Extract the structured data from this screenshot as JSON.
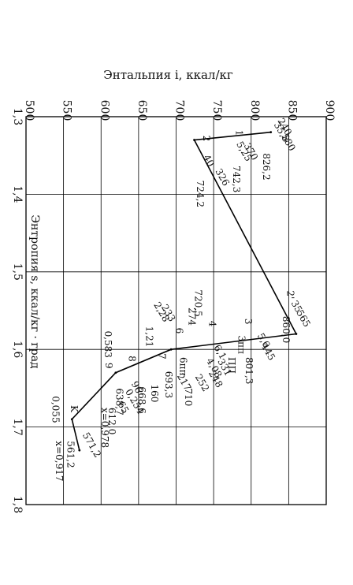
{
  "chart_data": {
    "type": "line",
    "xlabel": "Энтальпия i, ккал/кг",
    "ylabel": "Энтропия s, ккал/кг · град",
    "xlim": [
      500,
      900
    ],
    "ylim": [
      1.3,
      1.8
    ],
    "x_ticks": [
      "500",
      "550",
      "600",
      "650",
      "700",
      "750",
      "800",
      "850",
      "900"
    ],
    "y_ticks": [
      "1,3",
      "1,4",
      "1,5",
      "1,6",
      "1,7",
      "1,8"
    ],
    "grid": true,
    "orientation": "rotated-90-clockwise",
    "series": [
      {
        "points": [
          {
            "x": 826.2,
            "y": 1.32
          },
          {
            "x": 724.2,
            "y": 1.33
          },
          {
            "x": 860.0,
            "y": 1.58
          },
          {
            "x": 693.3,
            "y": 1.6
          },
          {
            "x": 619.5,
            "y": 1.63
          },
          {
            "x": 561.2,
            "y": 1.69
          },
          {
            "x": 571.2,
            "y": 1.73
          }
        ]
      }
    ],
    "annotations": [
      {
        "text": "240",
        "x": 835,
        "y": 1.305,
        "rot": 60
      },
      {
        "text": "35,8",
        "x": 830,
        "y": 1.31,
        "rot": 60
      },
      {
        "text": "580",
        "x": 840,
        "y": 1.325,
        "rot": 60
      },
      {
        "text": "826,2",
        "x": 816,
        "y": 1.347,
        "rot": 90
      },
      {
        "text": "1",
        "x": 780,
        "y": 1.317,
        "rot": 90
      },
      {
        "text": "5,25",
        "x": 780,
        "y": 1.335,
        "rot": 60
      },
      {
        "text": "370",
        "x": 790,
        "y": 1.337,
        "rot": 60
      },
      {
        "text": "742,3",
        "x": 776,
        "y": 1.363,
        "rot": 90
      },
      {
        "text": "2",
        "x": 736,
        "y": 1.324,
        "rot": 90
      },
      {
        "text": "40",
        "x": 736,
        "y": 1.352,
        "rot": 60
      },
      {
        "text": "326",
        "x": 752,
        "y": 1.37,
        "rot": 60
      },
      {
        "text": "724,2",
        "x": 728,
        "y": 1.382,
        "rot": 90
      },
      {
        "text": "2'",
        "x": 848,
        "y": 1.524,
        "rot": 90
      },
      {
        "text": "35",
        "x": 853,
        "y": 1.54,
        "rot": 60
      },
      {
        "text": "565",
        "x": 860,
        "y": 1.552,
        "rot": 60
      },
      {
        "text": "860,0",
        "x": 842,
        "y": 1.557,
        "rot": 90
      },
      {
        "text": "3",
        "x": 792,
        "y": 1.56,
        "rot": 90
      },
      {
        "text": "5,6",
        "x": 808,
        "y": 1.582,
        "rot": 60
      },
      {
        "text": "445",
        "x": 813,
        "y": 1.595,
        "rot": 60
      },
      {
        "text": "3пп",
        "x": 783,
        "y": 1.582,
        "rot": 90
      },
      {
        "text": "801,3",
        "x": 793,
        "y": 1.61,
        "rot": 90
      },
      {
        "text": "ПП",
        "x": 770,
        "y": 1.61,
        "rot": 90
      },
      {
        "text": "720,5",
        "x": 725,
        "y": 1.523,
        "rot": 90
      },
      {
        "text": "274",
        "x": 717,
        "y": 1.546,
        "rot": 90
      },
      {
        "text": "4",
        "x": 744,
        "y": 1.563,
        "rot": 90
      },
      {
        "text": "6,1",
        "x": 750,
        "y": 1.597,
        "rot": 60
      },
      {
        "text": "331",
        "x": 755,
        "y": 1.615,
        "rot": 60
      },
      {
        "text": "4,08",
        "x": 740,
        "y": 1.614,
        "rot": 60
      },
      {
        "text": "248",
        "x": 743,
        "y": 1.63,
        "rot": 60
      },
      {
        "text": "252",
        "x": 725,
        "y": 1.635,
        "rot": 60
      },
      {
        "text": "710",
        "x": 712,
        "y": 1.65,
        "rot": 90
      },
      {
        "text": "6",
        "x": 700,
        "y": 1.572,
        "rot": 90
      },
      {
        "text": "6пп",
        "x": 705,
        "y": 1.61,
        "rot": 90
      },
      {
        "text": "217",
        "x": 701,
        "y": 1.634,
        "rot": 60
      },
      {
        "text": "693,3",
        "x": 686,
        "y": 1.628,
        "rot": 90
      },
      {
        "text": "2,28",
        "x": 670,
        "y": 1.542,
        "rot": 60
      },
      {
        "text": "233",
        "x": 680,
        "y": 1.545,
        "rot": 60
      },
      {
        "text": "1,21",
        "x": 660,
        "y": 1.57,
        "rot": 90
      },
      {
        "text": "7",
        "x": 677,
        "y": 1.605,
        "rot": 90
      },
      {
        "text": "160",
        "x": 667,
        "y": 1.645,
        "rot": 90
      },
      {
        "text": "668,6",
        "x": 650,
        "y": 1.648,
        "rot": 90
      },
      {
        "text": "0,583",
        "x": 605,
        "y": 1.576,
        "rot": 90
      },
      {
        "text": "8",
        "x": 637,
        "y": 1.608,
        "rot": 90
      },
      {
        "text": "96",
        "x": 640,
        "y": 1.644,
        "rot": 60
      },
      {
        "text": "9",
        "x": 606,
        "y": 1.617,
        "rot": 90
      },
      {
        "text": "0,254",
        "x": 632,
        "y": 1.654,
        "rot": 60
      },
      {
        "text": "638,7",
        "x": 620,
        "y": 1.65,
        "rot": 90
      },
      {
        "text": "65",
        "x": 622,
        "y": 1.67,
        "rot": 60
      },
      {
        "text": "612,0",
        "x": 610,
        "y": 1.675,
        "rot": 90
      },
      {
        "text": "x=0,978",
        "x": 601,
        "y": 1.675,
        "rot": 90
      },
      {
        "text": "0,055",
        "x": 535,
        "y": 1.66,
        "rot": 90
      },
      {
        "text": "K",
        "x": 560,
        "y": 1.672,
        "rot": 90
      },
      {
        "text": "571,2",
        "x": 575,
        "y": 1.71,
        "rot": 60
      },
      {
        "text": "561,2",
        "x": 555,
        "y": 1.718,
        "rot": 90
      },
      {
        "text": "x=0,917",
        "x": 540,
        "y": 1.718,
        "rot": 90
      }
    ]
  }
}
